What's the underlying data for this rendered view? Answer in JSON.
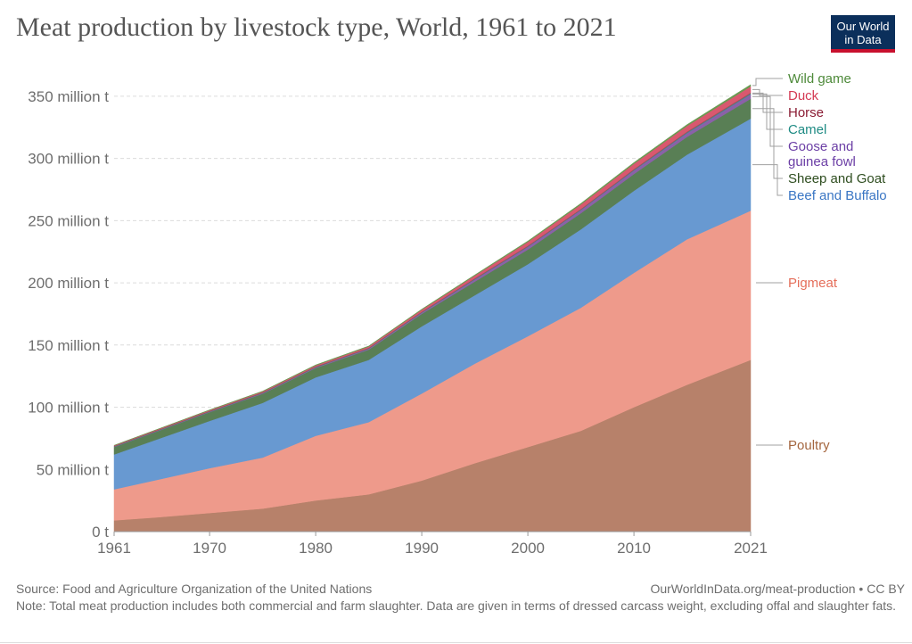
{
  "title": "Meat production by livestock type, World, 1961 to 2021",
  "logo": {
    "line1": "Our World",
    "line2": "in Data"
  },
  "source": "Source: Food and Agriculture Organization of the United Nations",
  "credit": "OurWorldInData.org/meat-production • CC BY",
  "note": "Note: Total meat production includes both commercial and farm slaughter. Data are given in terms of dressed carcass weight, excluding offal and slaughter fats.",
  "colors": {
    "poultry": "#b7816a",
    "pigmeat": "#ee9a8b",
    "beef": "#6899d1",
    "sheep": "#597f55",
    "goose": "#8a61a8",
    "camel": "#2a9d91",
    "horse": "#a14a5c",
    "duck": "#d9586f",
    "wild": "#6a9a52",
    "labels": {
      "poultry": "#a4663f",
      "pigmeat": "#e56e5a",
      "beef": "#3a76c4",
      "sheep": "#2e4d1f",
      "goose": "#6b3ea5",
      "camel": "#1f8b84",
      "horse": "#8a1b33",
      "duck": "#d43a53",
      "wild": "#4e8a3a"
    }
  },
  "chart_data": {
    "type": "area",
    "stacked": true,
    "title": "Meat production by livestock type, World, 1961 to 2021",
    "xlim": [
      1961,
      2021
    ],
    "ylim": [
      0,
      370000000
    ],
    "x_ticks": [
      {
        "value": 1961,
        "label": "1961"
      },
      {
        "value": 1970,
        "label": "1970"
      },
      {
        "value": 1980,
        "label": "1980"
      },
      {
        "value": 1990,
        "label": "1990"
      },
      {
        "value": 2000,
        "label": "2000"
      },
      {
        "value": 2010,
        "label": "2010"
      },
      {
        "value": 2021,
        "label": "2021"
      }
    ],
    "y_ticks": [
      {
        "value": 0,
        "label": "0 t"
      },
      {
        "value": 50000000,
        "label": "50 million t"
      },
      {
        "value": 100000000,
        "label": "100 million t"
      },
      {
        "value": 150000000,
        "label": "150 million t"
      },
      {
        "value": 200000000,
        "label": "200 million t"
      },
      {
        "value": 250000000,
        "label": "250 million t"
      },
      {
        "value": 300000000,
        "label": "300 million t"
      },
      {
        "value": 350000000,
        "label": "350 million t"
      }
    ],
    "grid": "horizontal dashed",
    "x": [
      1961,
      1965,
      1970,
      1975,
      1980,
      1985,
      1990,
      1995,
      2000,
      2005,
      2010,
      2015,
      2021
    ],
    "series": [
      {
        "name": "Poultry",
        "key": "poultry",
        "values": [
          9000000,
          11500000,
          15000000,
          18500000,
          25000000,
          30000000,
          41000000,
          55000000,
          68000000,
          81000000,
          100000000,
          118000000,
          138000000
        ]
      },
      {
        "name": "Pigmeat",
        "key": "pigmeat",
        "values": [
          25000000,
          30000000,
          36000000,
          41000000,
          52000000,
          58000000,
          70000000,
          80000000,
          89000000,
          99000000,
          108000000,
          117000000,
          120000000
        ]
      },
      {
        "name": "Beef and Buffalo",
        "key": "beef",
        "values": [
          28000000,
          32500000,
          38000000,
          44000000,
          47000000,
          50000000,
          54000000,
          55000000,
          58000000,
          63000000,
          66000000,
          68000000,
          74000000
        ]
      },
      {
        "name": "Sheep and Goat",
        "key": "sheep",
        "values": [
          6000000,
          6400000,
          7000000,
          7300000,
          7500000,
          8300000,
          10000000,
          11000000,
          11700000,
          13000000,
          13500000,
          14300000,
          16000000
        ]
      },
      {
        "name": "Goose and guinea fowl",
        "key": "goose",
        "values": [
          200000,
          300000,
          300000,
          400000,
          500000,
          700000,
          1000000,
          1700000,
          2200000,
          2500000,
          2800000,
          3000000,
          3500000
        ]
      },
      {
        "name": "Camel",
        "key": "camel",
        "values": [
          200000,
          200000,
          200000,
          200000,
          200000,
          200000,
          200000,
          300000,
          300000,
          300000,
          400000,
          500000,
          600000
        ]
      },
      {
        "name": "Horse",
        "key": "horse",
        "values": [
          500000,
          500000,
          600000,
          600000,
          600000,
          600000,
          600000,
          700000,
          700000,
          700000,
          800000,
          800000,
          800000
        ]
      },
      {
        "name": "Duck",
        "key": "duck",
        "values": [
          300000,
          400000,
          500000,
          600000,
          800000,
          1000000,
          1500000,
          2100000,
          3000000,
          3500000,
          4200000,
          4500000,
          5000000
        ]
      },
      {
        "name": "Wild game",
        "key": "wild",
        "values": [
          200000,
          250000,
          300000,
          350000,
          400000,
          450000,
          500000,
          600000,
          700000,
          900000,
          1000000,
          1100000,
          1400000
        ]
      }
    ],
    "legend": [
      {
        "name": "Wild game",
        "key": "wild",
        "label_lines": [
          "Wild game"
        ]
      },
      {
        "name": "Duck",
        "key": "duck",
        "label_lines": [
          "Duck"
        ]
      },
      {
        "name": "Horse",
        "key": "horse",
        "label_lines": [
          "Horse"
        ]
      },
      {
        "name": "Camel",
        "key": "camel",
        "label_lines": [
          "Camel"
        ]
      },
      {
        "name": "Goose and guinea fowl",
        "key": "goose",
        "label_lines": [
          "Goose and",
          "guinea fowl"
        ]
      },
      {
        "name": "Sheep and Goat",
        "key": "sheep",
        "label_lines": [
          "Sheep and Goat"
        ]
      },
      {
        "name": "Beef and Buffalo",
        "key": "beef",
        "label_lines": [
          "Beef and Buffalo"
        ]
      },
      {
        "name": "Pigmeat",
        "key": "pigmeat",
        "label_lines": [
          "Pigmeat"
        ]
      },
      {
        "name": "Poultry",
        "key": "poultry",
        "label_lines": [
          "Poultry"
        ]
      }
    ],
    "legend_placement": "right, labels at series end"
  }
}
